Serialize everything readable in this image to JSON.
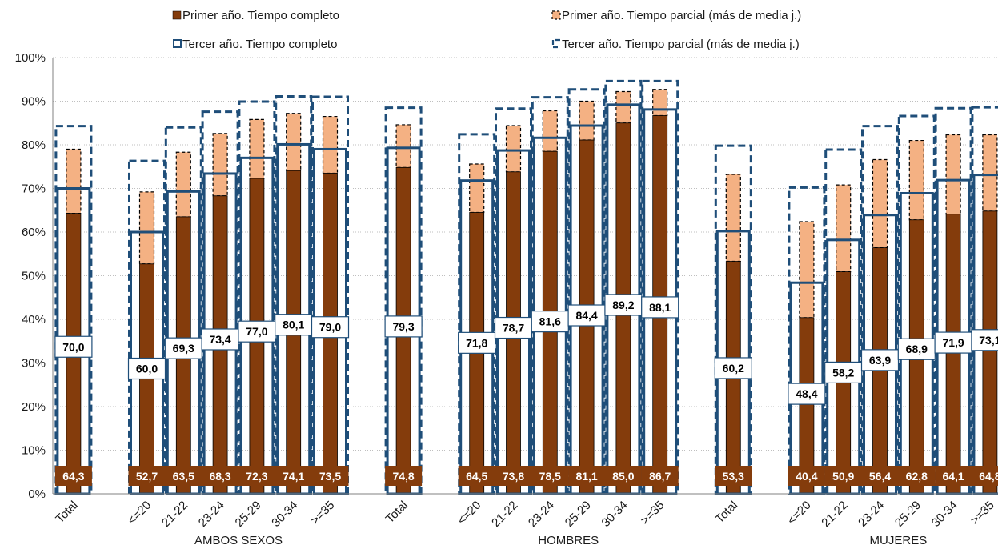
{
  "chart_data": {
    "type": "bar",
    "ylim": [
      0,
      100
    ],
    "y_ticks": [
      "0%",
      "10%",
      "20%",
      "30%",
      "40%",
      "50%",
      "60%",
      "70%",
      "80%",
      "90%",
      "100%"
    ],
    "grid": true,
    "legend_position": "top",
    "legend": {
      "first_full": "Primer año. Tiempo completo",
      "first_part": "Primer año. Tiempo parcial (más de media j.)",
      "third_full": "Tercer año. Tiempo completo",
      "third_part": "Tercer año. Tiempo parcial (más de media j.)"
    },
    "colors": {
      "first_full": "#843c0c",
      "first_part": "#f4b183",
      "third_outline": "#1f4e79",
      "grid": "#bfbfbf"
    },
    "groups": [
      {
        "name": "AMBOS SEXOS",
        "categories": [
          "Total",
          "<=20",
          "21-22",
          "23-24",
          "25-29",
          "30-34",
          ">=35"
        ],
        "first_full": [
          64.3,
          52.7,
          63.5,
          68.3,
          72.3,
          74.1,
          73.5
        ],
        "first_total": [
          79,
          69.2,
          78.3,
          82.6,
          85.8,
          87.2,
          86.5
        ],
        "third_full": [
          70.0,
          60.0,
          69.3,
          73.4,
          77.0,
          80.1,
          79.0
        ],
        "third_total": [
          84.3,
          76.3,
          84.0,
          87.6,
          89.9,
          91.1,
          91.0
        ],
        "first_full_labels": [
          "64,3",
          "52,7",
          "63,5",
          "68,3",
          "72,3",
          "74,1",
          "73,5"
        ],
        "third_full_labels": [
          "70,0",
          "60,0",
          "69,3",
          "73,4",
          "77,0",
          "80,1",
          "79,0"
        ]
      },
      {
        "name": "HOMBRES",
        "categories": [
          "Total",
          "<=20",
          "21-22",
          "23-24",
          "25-29",
          "30-34",
          ">=35"
        ],
        "first_full": [
          74.8,
          64.5,
          73.8,
          78.5,
          81.1,
          85.0,
          86.7
        ],
        "first_total": [
          84.6,
          75.6,
          84.4,
          87.8,
          90.0,
          92.2,
          92.7
        ],
        "third_full": [
          79.3,
          71.8,
          78.7,
          81.6,
          84.4,
          89.2,
          88.1
        ],
        "third_total": [
          88.5,
          82.4,
          88.3,
          90.9,
          92.7,
          94.6,
          94.6
        ],
        "first_full_labels": [
          "74,8",
          "64,5",
          "73,8",
          "78,5",
          "81,1",
          "85,0",
          "86,7"
        ],
        "third_full_labels": [
          "79,3",
          "71,8",
          "78,7",
          "81,6",
          "84,4",
          "89,2",
          "88,1"
        ]
      },
      {
        "name": "MUJERES",
        "categories": [
          "Total",
          "<=20",
          "21-22",
          "23-24",
          "25-29",
          "30-34",
          ">=35"
        ],
        "first_full": [
          53.3,
          40.4,
          50.9,
          56.4,
          62.8,
          64.1,
          64.8
        ],
        "first_total": [
          73.2,
          62.4,
          70.8,
          76.6,
          81.0,
          82.3,
          82.3
        ],
        "third_full": [
          60.2,
          48.4,
          58.2,
          63.9,
          68.9,
          71.9,
          73.1
        ],
        "third_total": [
          79.8,
          70.2,
          78.9,
          84.3,
          86.6,
          88.4,
          88.6
        ],
        "first_full_labels": [
          "53,3",
          "40,4",
          "50,9",
          "56,4",
          "62,8",
          "64,1",
          "64,8"
        ],
        "third_full_labels": [
          "60,2",
          "48,4",
          "58,2",
          "63,9",
          "68,9",
          "71,9",
          "73,1"
        ]
      }
    ]
  }
}
